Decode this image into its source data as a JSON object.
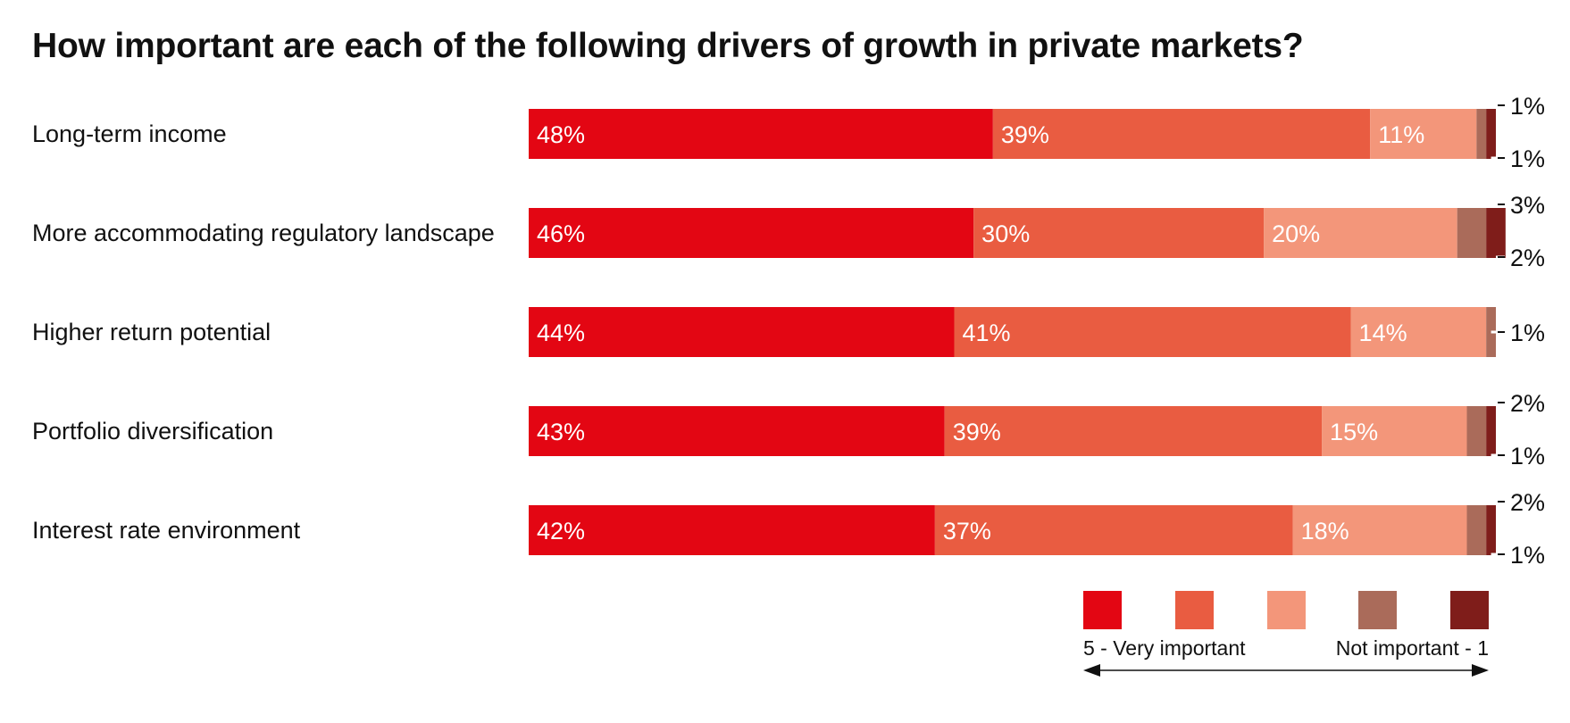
{
  "chart_data": {
    "type": "bar",
    "orientation": "horizontal",
    "stacked": true,
    "title": "How important are each of the following drivers of growth in private markets?",
    "categories": [
      "Long-term income",
      "More accommodating regulatory landscape",
      "Higher return potential",
      "Portfolio diversification",
      "Interest rate environment"
    ],
    "series": [
      {
        "values": [
          48,
          46,
          44,
          43,
          42
        ],
        "color": "#e30613"
      },
      {
        "values": [
          39,
          30,
          41,
          39,
          37
        ],
        "color": "#e95c41"
      },
      {
        "values": [
          11,
          20,
          14,
          15,
          18
        ],
        "color": "#f3967a"
      },
      {
        "values": [
          1,
          3,
          1,
          2,
          2
        ],
        "color": "#aa6b5a"
      },
      {
        "values": [
          1,
          2,
          0,
          1,
          1
        ],
        "color": "#7f1d1a"
      }
    ],
    "value_suffix": "%",
    "xlim": [
      0,
      100
    ],
    "legend": {
      "position": "bottom-right",
      "left_label": "5 - Very important",
      "right_label": "Not important - 1"
    }
  }
}
